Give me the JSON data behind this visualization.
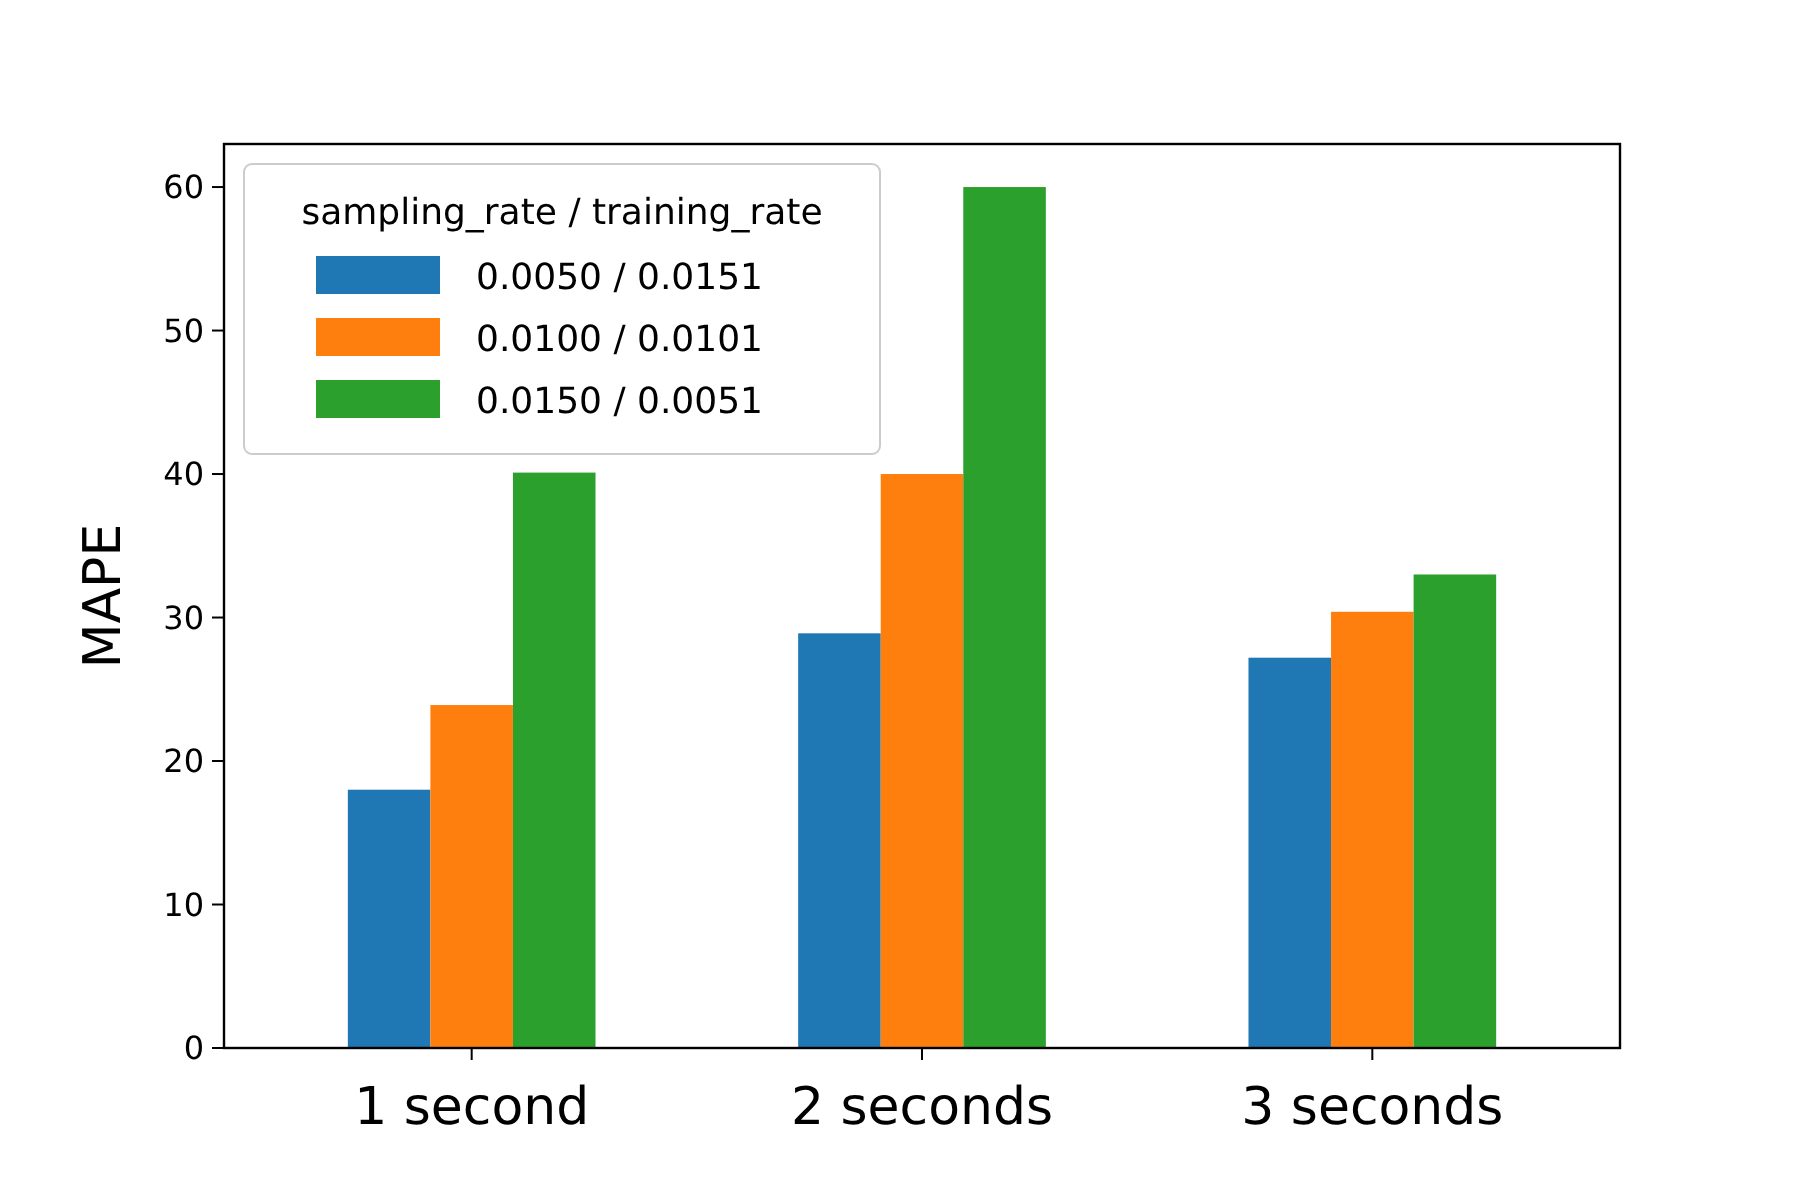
{
  "chart_data": {
    "type": "bar",
    "ylabel": "MAPE",
    "legend_title": "sampling_rate / training_rate",
    "categories": [
      "1 second",
      "2 seconds",
      "3 seconds"
    ],
    "series": [
      {
        "name": "0.0050 / 0.0151",
        "color": "#1f77b4",
        "values": [
          18.0,
          28.9,
          27.2
        ]
      },
      {
        "name": "0.0100 / 0.0101",
        "color": "#ff7f0e",
        "values": [
          23.9,
          40.0,
          30.4
        ]
      },
      {
        "name": "0.0150 / 0.0051",
        "color": "#2ca02c",
        "values": [
          40.1,
          60.0,
          33.0
        ]
      }
    ],
    "ylim": [
      0,
      63
    ],
    "yticks": [
      0,
      10,
      20,
      30,
      40,
      50,
      60
    ],
    "grid": false,
    "legend": "top left"
  }
}
